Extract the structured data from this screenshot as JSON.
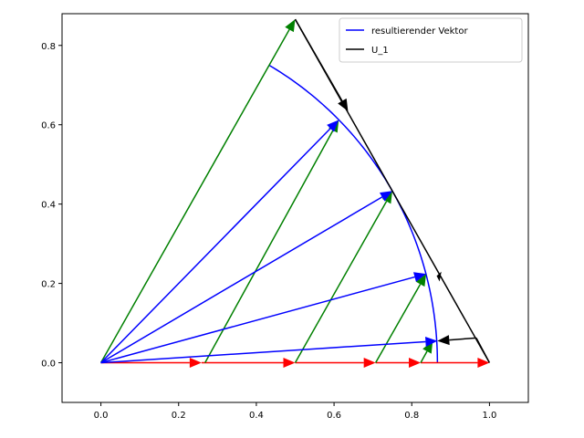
{
  "chart_data": {
    "type": "line",
    "title": "",
    "xlabel": "",
    "ylabel": "",
    "xlim": [
      -0.1,
      1.1
    ],
    "ylim": [
      -0.1,
      0.88
    ],
    "xticks": [
      "0.0",
      "0.2",
      "0.4",
      "0.6",
      "0.8",
      "1.0"
    ],
    "xtick_values": [
      0.0,
      0.2,
      0.4,
      0.6,
      0.8,
      1.0
    ],
    "yticks": [
      "0.0",
      "0.2",
      "0.4",
      "0.6",
      "0.8"
    ],
    "ytick_values": [
      0.0,
      0.2,
      0.4,
      0.6,
      0.8
    ],
    "grid": false,
    "legend": {
      "placement": "top-right",
      "entries": [
        {
          "label": "resultierender Vektor",
          "color": "#0000ff"
        },
        {
          "label": "U_1",
          "color": "#000000"
        }
      ]
    },
    "colors": {
      "red": "#ff0000",
      "green": "#008000",
      "blue": "#0000ff",
      "black": "#000000"
    },
    "series": [
      {
        "name": "resultierender Vektor",
        "kind": "arc",
        "color": "#0000ff",
        "center": [
          0,
          0
        ],
        "radius": 0.866,
        "angle_from_deg": 0,
        "angle_to_deg": 60
      },
      {
        "name": "U_1",
        "kind": "polyline",
        "color": "#000000",
        "points": [
          [
            0.5,
            0.866
          ],
          [
            1.0,
            0.0
          ],
          [
            0.966,
            0.0625
          ]
        ]
      }
    ],
    "arrows": {
      "red": [
        {
          "from": [
            0,
            0
          ],
          "to": [
            0.259,
            0
          ]
        },
        {
          "from": [
            0.259,
            0
          ],
          "to": [
            0.5,
            0
          ]
        },
        {
          "from": [
            0.5,
            0
          ],
          "to": [
            0.707,
            0
          ]
        },
        {
          "from": [
            0.707,
            0
          ],
          "to": [
            0.823,
            0
          ]
        },
        {
          "from": [
            0.823,
            0
          ],
          "to": [
            1.0,
            0
          ]
        }
      ],
      "green": [
        {
          "from": [
            0,
            0
          ],
          "to": [
            0.5,
            0.866
          ]
        },
        {
          "from": [
            0.268,
            0
          ],
          "to": [
            0.612,
            0.612
          ]
        },
        {
          "from": [
            0.5,
            0
          ],
          "to": [
            0.75,
            0.433
          ]
        },
        {
          "from": [
            0.707,
            0
          ],
          "to": [
            0.837,
            0.224
          ]
        },
        {
          "from": [
            0.823,
            0
          ],
          "to": [
            0.854,
            0.055
          ]
        }
      ],
      "blue": [
        {
          "from": [
            0,
            0
          ],
          "to": [
            0.612,
            0.612
          ]
        },
        {
          "from": [
            0,
            0
          ],
          "to": [
            0.75,
            0.433
          ]
        },
        {
          "from": [
            0,
            0
          ],
          "to": [
            0.837,
            0.224
          ]
        },
        {
          "from": [
            0,
            0
          ],
          "to": [
            0.866,
            0.055
          ]
        }
      ],
      "black": [
        {
          "from": [
            0.5,
            0.866
          ],
          "to": [
            0.636,
            0.634
          ]
        },
        {
          "from": [
            0.875,
            0.217
          ],
          "to": [
            0.864,
            0.219
          ]
        },
        {
          "from": [
            0.966,
            0.0625
          ],
          "to": [
            0.866,
            0.055
          ]
        }
      ]
    }
  }
}
